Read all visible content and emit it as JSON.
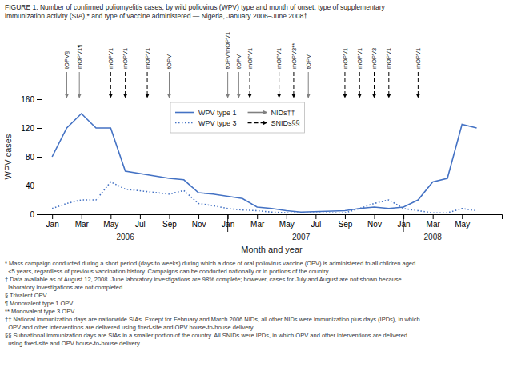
{
  "chart_data": {
    "type": "line",
    "title": "FIGURE 1. Number of confirmed poliomyelitis cases, by wild poliovirus (WPV) type and month of onset, type of supplementary\nimmunization activity (SIA),* and type of vaccine administered — Nigeria, January 2006–June 2008†",
    "x_label": "Month and year",
    "y_label": "WPV cases",
    "x": [
      0.0,
      0.0833,
      0.1667,
      0.25,
      0.3333,
      0.4167,
      0.6667,
      0.75,
      0.8333,
      0.9167,
      1.0,
      1.0833,
      1.1667,
      1.25,
      1.3333,
      1.4167,
      1.6667,
      1.75,
      1.8333,
      1.9167,
      2.0,
      2.0833,
      2.1667,
      2.25,
      2.3333,
      2.4167
    ],
    "series": [
      {
        "name": "WPV type 1",
        "color": "#4472C4",
        "line_style": "solid",
        "values": [
          80,
          120,
          140,
          120,
          120,
          60,
          50,
          48,
          30,
          28,
          25,
          22,
          10,
          8,
          5,
          3,
          5,
          8,
          10,
          8,
          10,
          20,
          45,
          50,
          125,
          120
        ]
      },
      {
        "name": "WPV type 3",
        "color": "#4472C4",
        "line_style": "dotted",
        "values": [
          8,
          15,
          20,
          20,
          45,
          35,
          28,
          33,
          15,
          12,
          8,
          6,
          5,
          3,
          2,
          2,
          2,
          8,
          15,
          20,
          8,
          5,
          2,
          2,
          8,
          5
        ]
      }
    ],
    "xlim": [
      -0.06,
      2.56
    ],
    "xticks": [
      {
        "value": 0.0,
        "label": "Jan"
      },
      {
        "value": 0.1667,
        "label": "Mar"
      },
      {
        "value": 0.3333,
        "label": "May"
      },
      {
        "value": 0.5,
        "label": "Jul"
      },
      {
        "value": 0.6667,
        "label": "Sep"
      },
      {
        "value": 0.8333,
        "label": "Nov"
      },
      {
        "value": 1.0,
        "label": "Jan"
      },
      {
        "value": 1.1667,
        "label": "Mar"
      },
      {
        "value": 1.3333,
        "label": "May"
      },
      {
        "value": 1.5,
        "label": "Jul"
      },
      {
        "value": 1.6667,
        "label": "Sep"
      },
      {
        "value": 1.8333,
        "label": "Nov"
      },
      {
        "value": 2.0,
        "label": "Jan"
      },
      {
        "value": 2.1667,
        "label": "Mar"
      },
      {
        "value": 2.3333,
        "label": "May"
      }
    ],
    "ylim": [
      0,
      160
    ],
    "yticks": [
      0,
      40,
      80,
      120,
      160
    ],
    "grid": false,
    "year_separators": [
      1.0,
      2.0
    ],
    "year_labels": [
      {
        "text": "2006",
        "x": 0.4167
      },
      {
        "text": "2007",
        "x": 1.4167
      },
      {
        "text": "2008",
        "x": 2.1667
      }
    ],
    "sia_legend": [
      {
        "name": "NIDs††",
        "line_style": "solid",
        "color": "#808080"
      },
      {
        "name": "SNIDs§§",
        "line_style": "dashed",
        "color": "#000000"
      }
    ],
    "sia_events": [
      {
        "x": 0.0833,
        "label": "tOPV§",
        "line_style": "solid"
      },
      {
        "x": 0.155,
        "label": "mOPV1¶",
        "line_style": "solid"
      },
      {
        "x": 0.3333,
        "label": "mOPV1",
        "line_style": "dashed"
      },
      {
        "x": 0.4167,
        "label": "mOPV1",
        "line_style": "dashed"
      },
      {
        "x": 0.5417,
        "label": "mOPV1",
        "line_style": "dashed"
      },
      {
        "x": 0.6667,
        "label": "tOPV",
        "line_style": "solid"
      },
      {
        "x": 1.0,
        "label": "tOPV/mOPV1",
        "line_style": "solid"
      },
      {
        "x": 1.0625,
        "label": "tOPV",
        "line_style": "solid"
      },
      {
        "x": 1.125,
        "label": "mOPV1",
        "line_style": "dashed"
      },
      {
        "x": 1.2917,
        "label": "mOPV1",
        "line_style": "dashed"
      },
      {
        "x": 1.375,
        "label": "mOPV3**",
        "line_style": "dashed"
      },
      {
        "x": 1.4583,
        "label": "tOPV",
        "line_style": "solid"
      },
      {
        "x": 1.6667,
        "label": "mOPV1",
        "line_style": "dashed"
      },
      {
        "x": 1.75,
        "label": "mOPV1",
        "line_style": "dashed"
      },
      {
        "x": 1.8333,
        "label": "mOPV3",
        "line_style": "dashed"
      },
      {
        "x": 1.9167,
        "label": "mOPV1",
        "line_style": "dashed"
      },
      {
        "x": 2.0833,
        "label": "mOPV1",
        "line_style": "dashed"
      }
    ],
    "footnote": "* Mass campaign conducted during a short period (days to weeks) during which a dose of oral poliovirus vaccine (OPV) is administered to all children aged\n  <5 years, regardless of previous vaccination history. Campaigns can be conducted nationally or in portions of the country.\n† Data available as of August 12, 2008. June laboratory investigations are 98% complete; however, cases for July and August are not shown because\n  laboratory investigations are not completed.\n§ Trivalent OPV.\n¶ Monovalent type 1 OPV.\n** Monovalent type 3 OPV.\n†† National immunization days are nationwide SIAs. Except for February and March 2006 NIDs, all other NIDs were immunization plus days (IPDs), in which\n  OPV and other interventions are delivered using fixed-site and OPV house-to-house delivery.\n§§ Subnational immunization days are SIAs in a smaller portion of the country. All SNIDs were IPDs, in which OPV and other interventions are delivered\n  using fixed-site and OPV house-to-house delivery."
  }
}
